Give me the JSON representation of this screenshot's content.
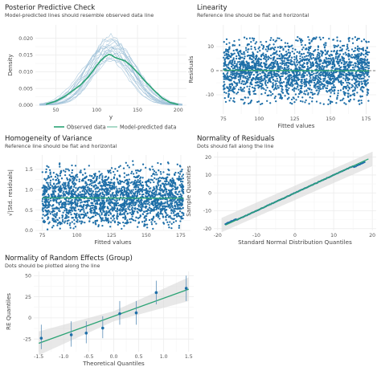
{
  "colors": {
    "dot": "#1f6fa8",
    "green": "#2aa374",
    "thin": "#9fc1d8",
    "grid": "#ebebeb",
    "band": "#d9d9d9"
  },
  "chart_data": [
    {
      "id": "ppc",
      "type": "line",
      "title": "Posterior Predictive Check",
      "subtitle": "Model-predicted lines should resemble observed data line",
      "xlabel": "y",
      "ylabel": "Density",
      "xlim": [
        25,
        210
      ],
      "ylim": [
        0,
        0.024
      ],
      "xticks": [
        50,
        100,
        150,
        200
      ],
      "yticks": [
        0.0,
        0.005,
        0.01,
        0.015,
        0.02
      ],
      "ytick_labels": [
        "0.000",
        "0.005",
        "0.010",
        "0.015",
        "0.020"
      ],
      "legend": {
        "position": "bottom",
        "items": [
          "Observed data",
          "Model-predicted data"
        ]
      },
      "observed": {
        "x": [
          38,
          50,
          60,
          70,
          80,
          90,
          100,
          105,
          110,
          115,
          118,
          122,
          128,
          135,
          142,
          150,
          160,
          170,
          180,
          190,
          200
        ],
        "y": [
          0.0003,
          0.0012,
          0.0025,
          0.0042,
          0.006,
          0.0085,
          0.0118,
          0.0133,
          0.0145,
          0.0152,
          0.015,
          0.0143,
          0.0138,
          0.0132,
          0.0118,
          0.0098,
          0.007,
          0.0045,
          0.0022,
          0.0008,
          0.0002
        ]
      },
      "predicted_peaks": [
        {
          "mu": 112,
          "sd": 26,
          "peak": 0.0175
        },
        {
          "mu": 116,
          "sd": 28,
          "peak": 0.016
        },
        {
          "mu": 120,
          "sd": 25,
          "peak": 0.0185
        },
        {
          "mu": 108,
          "sd": 27,
          "peak": 0.015
        },
        {
          "mu": 124,
          "sd": 29,
          "peak": 0.0165
        },
        {
          "mu": 118,
          "sd": 24,
          "peak": 0.02
        },
        {
          "mu": 114,
          "sd": 30,
          "peak": 0.014
        },
        {
          "mu": 122,
          "sd": 26,
          "peak": 0.019
        },
        {
          "mu": 110,
          "sd": 25,
          "peak": 0.017
        },
        {
          "mu": 126,
          "sd": 27,
          "peak": 0.0155
        },
        {
          "mu": 117,
          "sd": 23,
          "peak": 0.021
        },
        {
          "mu": 119,
          "sd": 31,
          "peak": 0.0135
        },
        {
          "mu": 113,
          "sd": 28,
          "peak": 0.018
        },
        {
          "mu": 121,
          "sd": 24,
          "peak": 0.0172
        },
        {
          "mu": 115,
          "sd": 26,
          "peak": 0.0195
        },
        {
          "mu": 109,
          "sd": 29,
          "peak": 0.0162
        },
        {
          "mu": 125,
          "sd": 25,
          "peak": 0.0178
        },
        {
          "mu": 123,
          "sd": 28,
          "peak": 0.0148
        }
      ]
    },
    {
      "id": "linearity",
      "type": "scatter",
      "title": "Linearity",
      "subtitle": "Reference line should be flat and horizontal",
      "xlabel": "Fitted values",
      "ylabel": "Residuals",
      "xlim": [
        70,
        182
      ],
      "ylim": [
        -18,
        19
      ],
      "xticks": [
        75,
        100,
        125,
        150,
        175
      ],
      "yticks": [
        -10,
        0,
        10
      ],
      "x_range": [
        75,
        177
      ],
      "y_spread": 12,
      "n_points": 2200,
      "reference": 0
    },
    {
      "id": "homogeneity",
      "type": "scatter",
      "title": "Homogeneity of Variance",
      "subtitle": "Reference line should be flat and horizontal",
      "xlabel": "Fitted values",
      "ylabel": "√|Std. residuals|",
      "xlim": [
        70,
        182
      ],
      "ylim": [
        0,
        1.85
      ],
      "xticks": [
        75,
        100,
        125,
        150,
        175
      ],
      "yticks": [
        0.0,
        0.5,
        1.0,
        1.5
      ],
      "ytick_labels": [
        "0.0",
        "0.5",
        "1.0",
        "1.5"
      ],
      "x_range": [
        75,
        177
      ],
      "y_max": 1.7,
      "n_points": 2200,
      "reference": 0.8
    },
    {
      "id": "normality",
      "type": "scatter",
      "title": "Normality of Residuals",
      "subtitle": "Dots should fall along the line",
      "xlabel": "Standard Normal Distribution Quantiles",
      "ylabel": "Sample Quantiles",
      "xlim": [
        -21,
        21
      ],
      "ylim": [
        -21,
        23
      ],
      "xticks": [
        -20,
        -10,
        0,
        10,
        20
      ],
      "yticks": [
        -20,
        -10,
        0,
        10,
        20
      ],
      "line": [
        [
          -18,
          -18
        ],
        [
          19,
          19
        ]
      ],
      "points_x_range": [
        -18,
        18
      ]
    },
    {
      "id": "random_effects",
      "type": "scatter",
      "title": "Normality of Random Effects (Group)",
      "subtitle": "Dots should be plotted along the line",
      "xlabel": "Theoretical Quantiles",
      "ylabel": "RE Quantiles",
      "xlim": [
        -1.6,
        1.6
      ],
      "ylim": [
        -40,
        55
      ],
      "xticks": [
        -1.5,
        -1.0,
        -0.5,
        0.0,
        0.5,
        1.0,
        1.5
      ],
      "xtick_labels": [
        "-1.5",
        "-1.0",
        "-0.5",
        "0.0",
        "0.5",
        "1.0",
        "1.5"
      ],
      "yticks": [
        -25,
        0,
        25,
        50
      ],
      "points": [
        {
          "x": -1.45,
          "y": -24,
          "lo": -37,
          "hi": -8
        },
        {
          "x": -0.85,
          "y": -20,
          "lo": -34,
          "hi": -4
        },
        {
          "x": -0.55,
          "y": -18,
          "lo": -30,
          "hi": -4
        },
        {
          "x": -0.22,
          "y": -12,
          "lo": -24,
          "hi": 2
        },
        {
          "x": 0.12,
          "y": 5,
          "lo": -8,
          "hi": 20
        },
        {
          "x": 0.45,
          "y": 6,
          "lo": -8,
          "hi": 20
        },
        {
          "x": 0.85,
          "y": 30,
          "lo": 16,
          "hi": 44
        },
        {
          "x": 1.45,
          "y": 35,
          "lo": 20,
          "hi": 50
        }
      ],
      "fit": [
        [
          -1.5,
          -30
        ],
        [
          1.5,
          34
        ]
      ]
    }
  ]
}
